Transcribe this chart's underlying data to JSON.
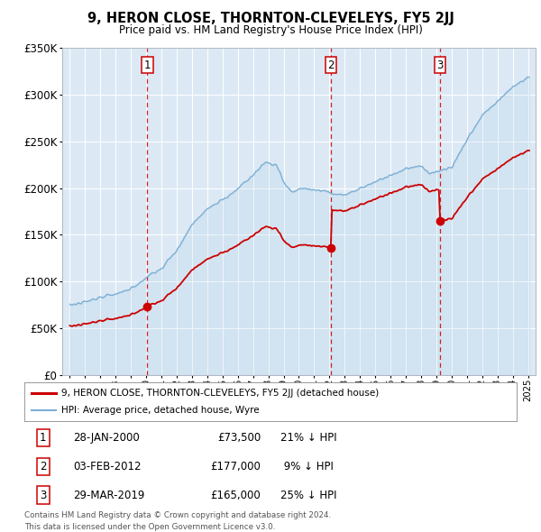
{
  "title": "9, HERON CLOSE, THORNTON-CLEVELEYS, FY5 2JJ",
  "subtitle": "Price paid vs. HM Land Registry's House Price Index (HPI)",
  "hpi_color": "#7bafd4",
  "price_color": "#cc0000",
  "plot_bg_color": "#dce9f5",
  "transactions": [
    {
      "num": 1,
      "date_num": 2000.07,
      "price": 73500,
      "label": "28-JAN-2000",
      "pct": "21% ↓ HPI"
    },
    {
      "num": 2,
      "date_num": 2012.09,
      "price": 177000,
      "label": "03-FEB-2012",
      "pct": "9% ↓ HPI"
    },
    {
      "num": 3,
      "date_num": 2019.24,
      "price": 165000,
      "label": "29-MAR-2019",
      "pct": "25% ↓ HPI"
    }
  ],
  "legend_line1": "9, HERON CLOSE, THORNTON-CLEVELEYS, FY5 2JJ (detached house)",
  "legend_line2": "HPI: Average price, detached house, Wyre",
  "footer1": "Contains HM Land Registry data © Crown copyright and database right 2024.",
  "footer2": "This data is licensed under the Open Government Licence v3.0.",
  "ylim": [
    0,
    350000
  ],
  "yticks": [
    0,
    50000,
    100000,
    150000,
    200000,
    250000,
    300000,
    350000
  ],
  "xlim": [
    1994.5,
    2025.5
  ]
}
